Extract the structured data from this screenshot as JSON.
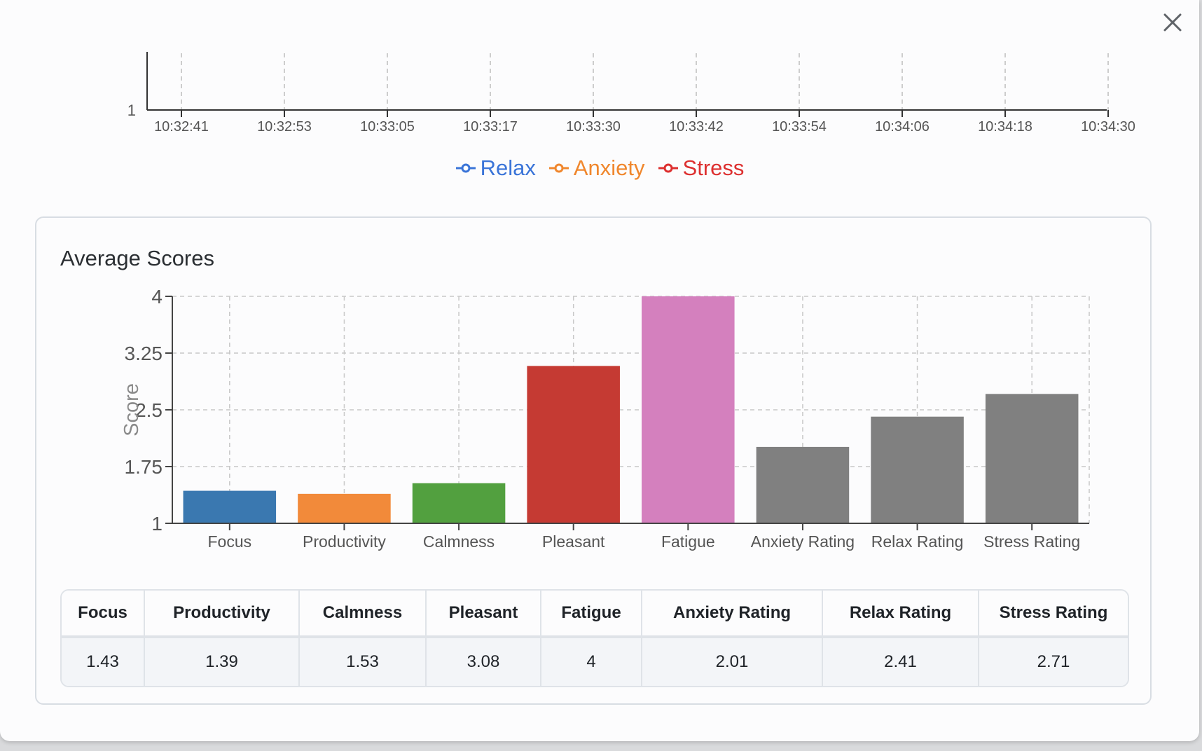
{
  "top_chart": {
    "y_tick": "1",
    "x_ticks": [
      "10:32:41",
      "10:32:53",
      "10:33:05",
      "10:33:17",
      "10:33:30",
      "10:33:42",
      "10:33:54",
      "10:34:06",
      "10:34:18",
      "10:34:30"
    ],
    "legend": [
      {
        "name": "Relax",
        "color": "#3a74d8"
      },
      {
        "name": "Anxiety",
        "color": "#f0872d"
      },
      {
        "name": "Stress",
        "color": "#dd2f2f"
      }
    ]
  },
  "card": {
    "title": "Average Scores"
  },
  "chart_data": {
    "type": "bar",
    "title": "Average Scores",
    "ylabel": "Score",
    "xlabel": "",
    "ylim": [
      1,
      4
    ],
    "yticks": [
      "1",
      "1.75",
      "2.5",
      "3.25",
      "4"
    ],
    "grid": true,
    "categories": [
      "Focus",
      "Productivity",
      "Calmness",
      "Pleasant",
      "Fatigue",
      "Anxiety Rating",
      "Relax Rating",
      "Stress Rating"
    ],
    "values": [
      1.43,
      1.39,
      1.53,
      3.08,
      4,
      2.01,
      2.41,
      2.71
    ],
    "colors": [
      "#3a78b0",
      "#f28a3a",
      "#52a03f",
      "#c53a33",
      "#d480be",
      "#808080",
      "#808080",
      "#808080"
    ]
  },
  "table": {
    "headers": [
      "Focus",
      "Productivity",
      "Calmness",
      "Pleasant",
      "Fatigue",
      "Anxiety Rating",
      "Relax Rating",
      "Stress Rating"
    ],
    "row": [
      "1.43",
      "1.39",
      "1.53",
      "3.08",
      "4",
      "2.01",
      "2.41",
      "2.71"
    ]
  }
}
